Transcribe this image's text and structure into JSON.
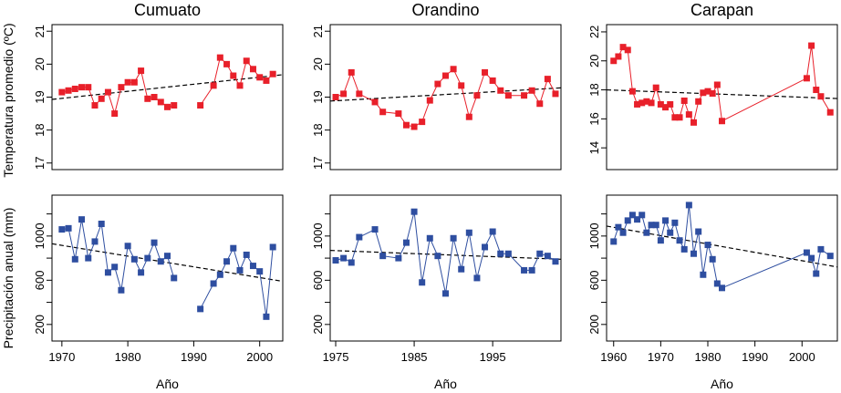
{
  "chart_data": [
    {
      "type": "scatter",
      "site": "Cumuato",
      "title": "Cumuato",
      "metric": "temp",
      "ylabel": "Temperatura promedio (ºC)",
      "xlabel": "",
      "xlim": [
        1968.5,
        2003.5
      ],
      "ylim": [
        16.8,
        21.2
      ],
      "yticks": [
        17,
        18,
        19,
        20,
        21
      ],
      "xticks": [],
      "color": "#e8202a",
      "marker": "square",
      "series": [
        {
          "x": [
            1970,
            1971,
            1972,
            1973,
            1974,
            1975,
            1976,
            1977,
            1978,
            1979,
            1980,
            1981,
            1982,
            1983,
            1984,
            1985,
            1986,
            1987
          ],
          "y": [
            19.15,
            19.2,
            19.25,
            19.3,
            19.3,
            18.75,
            18.95,
            19.15,
            18.5,
            19.3,
            19.45,
            19.45,
            19.8,
            18.95,
            19.0,
            18.85,
            18.7,
            18.75
          ]
        },
        {
          "x": [
            1991,
            1993,
            1994,
            1995,
            1996,
            1997,
            1998,
            1999,
            2000,
            2001,
            2002
          ],
          "y": [
            18.75,
            19.35,
            20.2,
            20.0,
            19.65,
            19.35,
            20.1,
            19.85,
            19.6,
            19.5,
            19.7
          ]
        }
      ],
      "trend": {
        "x": [
          1968.5,
          2003.5
        ],
        "y": [
          18.93,
          19.68
        ]
      }
    },
    {
      "type": "scatter",
      "site": "Orandino",
      "title": "Orandino",
      "metric": "temp",
      "ylabel": "",
      "xlabel": "",
      "xlim": [
        1974.3,
        2003.7
      ],
      "ylim": [
        16.8,
        21.2
      ],
      "yticks": [
        17,
        18,
        19,
        20,
        21
      ],
      "xticks": [],
      "color": "#e8202a",
      "marker": "square",
      "series": [
        {
          "x": [
            1975,
            1976,
            1977,
            1978,
            1980,
            1981,
            1983,
            1984,
            1985,
            1986,
            1987,
            1988,
            1989,
            1990,
            1991,
            1992,
            1993,
            1994,
            1995,
            1996,
            1997,
            1999,
            2000,
            2001,
            2002,
            2003
          ],
          "y": [
            19.0,
            19.1,
            19.75,
            19.1,
            18.85,
            18.55,
            18.5,
            18.15,
            18.1,
            18.25,
            18.9,
            19.4,
            19.65,
            19.85,
            19.35,
            18.4,
            19.05,
            19.75,
            19.5,
            19.2,
            19.05,
            19.05,
            19.2,
            18.8,
            19.55,
            19.1
          ]
        }
      ],
      "trend": {
        "x": [
          1974.3,
          2003.7
        ],
        "y": [
          18.88,
          19.28
        ]
      }
    },
    {
      "type": "scatter",
      "site": "Carapan",
      "title": "Carapan",
      "metric": "temp",
      "ylabel": "",
      "xlabel": "",
      "xlim": [
        1958.5,
        2007.5
      ],
      "ylim": [
        12.5,
        22.5
      ],
      "yticks": [
        14,
        16,
        18,
        20,
        22
      ],
      "xticks": [],
      "color": "#e8202a",
      "marker": "square",
      "series": [
        {
          "x": [
            1960,
            1961,
            1962,
            1963,
            1964,
            1965,
            1966,
            1967,
            1968,
            1969,
            1970,
            1971,
            1972,
            1973,
            1974,
            1975,
            1976,
            1977,
            1978,
            1979,
            1980,
            1981,
            1982,
            1983,
            2001,
            2002,
            2003,
            2004,
            2006
          ],
          "y": [
            20.0,
            20.3,
            20.95,
            20.75,
            17.9,
            17.0,
            17.1,
            17.2,
            17.1,
            18.15,
            17.0,
            16.8,
            17.0,
            16.1,
            16.1,
            17.25,
            16.3,
            15.75,
            17.2,
            17.8,
            17.9,
            17.75,
            18.35,
            15.85,
            18.8,
            21.05,
            18.0,
            17.55,
            16.45
          ]
        }
      ],
      "trend": {
        "x": [
          1958.5,
          2007.5
        ],
        "y": [
          18.0,
          17.4
        ]
      }
    },
    {
      "type": "scatter",
      "site": "Cumuato",
      "title": "",
      "metric": "precip",
      "ylabel": "Precipitación anual (mm)",
      "xlabel": "Año",
      "xlim": [
        1968.5,
        2003.5
      ],
      "ylim": [
        50,
        1370
      ],
      "yticks": [
        200,
        600,
        1000
      ],
      "yminor": [
        400,
        800,
        1200
      ],
      "xticks": [
        1970,
        1980,
        1990,
        2000
      ],
      "color": "#2e4ea0",
      "marker": "square",
      "series": [
        {
          "x": [
            1970,
            1971,
            1972,
            1973,
            1974,
            1975,
            1976,
            1977,
            1978,
            1979,
            1980,
            1981,
            1982,
            1983,
            1984,
            1985,
            1986,
            1987
          ],
          "y": [
            1060,
            1070,
            790,
            1150,
            800,
            950,
            1110,
            670,
            720,
            510,
            910,
            790,
            670,
            800,
            940,
            770,
            820,
            620
          ]
        },
        {
          "x": [
            1991,
            1993,
            1994,
            1995,
            1996,
            1997,
            1998,
            1999,
            2000,
            2001,
            2002
          ],
          "y": [
            340,
            570,
            650,
            770,
            890,
            690,
            830,
            730,
            680,
            270,
            900
          ]
        }
      ],
      "trend": {
        "x": [
          1968.5,
          2003.5
        ],
        "y": [
          930,
          590
        ]
      }
    },
    {
      "type": "scatter",
      "site": "Orandino",
      "title": "",
      "metric": "precip",
      "ylabel": "",
      "xlabel": "Año",
      "xlim": [
        1974.3,
        2003.7
      ],
      "ylim": [
        50,
        1370
      ],
      "yticks": [
        200,
        600,
        1000
      ],
      "yminor": [
        400,
        800,
        1200
      ],
      "xticks": [
        1975,
        1985,
        1995
      ],
      "color": "#2e4ea0",
      "marker": "square",
      "series": [
        {
          "x": [
            1975,
            1976,
            1977,
            1978,
            1980,
            1981,
            1983,
            1984,
            1985,
            1986,
            1987,
            1988,
            1989,
            1990,
            1991,
            1992,
            1993,
            1994,
            1995,
            1996,
            1997,
            1999,
            2000,
            2001,
            2002,
            2003
          ],
          "y": [
            780,
            800,
            760,
            990,
            1060,
            820,
            800,
            940,
            1220,
            580,
            980,
            820,
            480,
            980,
            700,
            1030,
            620,
            900,
            1040,
            840,
            840,
            690,
            690,
            840,
            820,
            770
          ]
        }
      ],
      "trend": {
        "x": [
          1974.3,
          2003.7
        ],
        "y": [
          870,
          790
        ]
      }
    },
    {
      "type": "scatter",
      "site": "Carapan",
      "title": "",
      "metric": "precip",
      "ylabel": "",
      "xlabel": "Año",
      "xlim": [
        1958.5,
        2007.5
      ],
      "ylim": [
        50,
        1370
      ],
      "yticks": [
        200,
        600,
        1000
      ],
      "yminor": [
        400,
        800,
        1200
      ],
      "xticks": [
        1960,
        1970,
        1980,
        1990,
        2000
      ],
      "color": "#2e4ea0",
      "marker": "square",
      "series": [
        {
          "x": [
            1960,
            1961,
            1962,
            1963,
            1964,
            1965,
            1966,
            1967,
            1968,
            1969,
            1970,
            1971,
            1972,
            1973,
            1974,
            1975,
            1976,
            1977,
            1978,
            1979,
            1980,
            1981,
            1982,
            1983,
            2001,
            2002,
            2003,
            2004,
            2006
          ],
          "y": [
            950,
            1080,
            1030,
            1140,
            1190,
            1150,
            1190,
            1030,
            1100,
            1100,
            960,
            1140,
            1030,
            1120,
            960,
            880,
            1280,
            840,
            1040,
            650,
            920,
            790,
            570,
            530,
            850,
            800,
            660,
            880,
            820
          ]
        }
      ],
      "trend": {
        "x": [
          1958.5,
          2007.5
        ],
        "y": [
          1090,
          720
        ]
      }
    }
  ]
}
